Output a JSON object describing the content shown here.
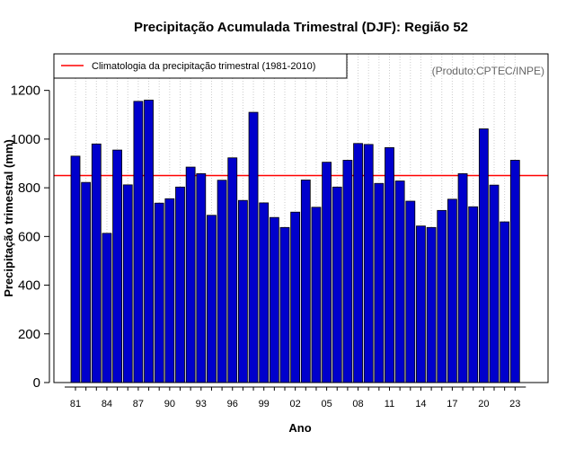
{
  "chart_data": {
    "type": "bar",
    "title": "Precipitação Acumulada Trimestral (DJF): Região 52",
    "xlabel": "Ano",
    "ylabel": "Precipitação trimestral (mm)",
    "credit": "(Produto:CPTEC/INPE)",
    "ylim": [
      0,
      1350
    ],
    "y_ticks": [
      0,
      200,
      400,
      600,
      800,
      1000,
      1200
    ],
    "categories": [
      "81",
      "82",
      "83",
      "84",
      "85",
      "86",
      "87",
      "88",
      "89",
      "90",
      "91",
      "92",
      "93",
      "94",
      "95",
      "96",
      "97",
      "98",
      "99",
      "00",
      "01",
      "02",
      "03",
      "04",
      "05",
      "06",
      "07",
      "08",
      "09",
      "10",
      "11",
      "12",
      "13",
      "14",
      "15",
      "16",
      "17",
      "18",
      "19",
      "20",
      "21",
      "22",
      "23"
    ],
    "x_tick_labels": [
      "81",
      "84",
      "87",
      "90",
      "93",
      "96",
      "99",
      "02",
      "05",
      "08",
      "11",
      "14",
      "17",
      "20",
      "23"
    ],
    "values": [
      930,
      822,
      980,
      613,
      955,
      812,
      1155,
      1160,
      737,
      755,
      803,
      885,
      858,
      687,
      831,
      923,
      748,
      1110,
      738,
      678,
      637,
      700,
      832,
      720,
      905,
      803,
      913,
      982,
      978,
      818,
      965,
      828,
      745,
      643,
      637,
      707,
      753,
      858,
      722,
      1042,
      811,
      660,
      913
    ],
    "bar_color": "#0000cc",
    "climatology": {
      "label": "Climatologia da precipitação trimestral (1981-2010)",
      "value": 850,
      "color": "#ff0000"
    },
    "legend_position": "top-left",
    "grid": "vertical dotted"
  }
}
